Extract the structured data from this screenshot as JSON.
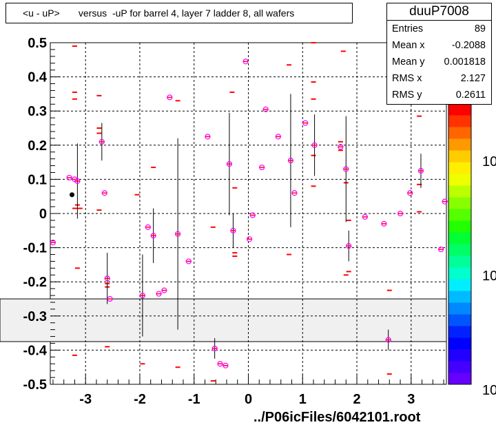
{
  "title": "<u - uP>       versus  -uP for barrel 4, layer 7 ladder 8, all wafers",
  "stats": {
    "name": "duuP7008",
    "rows": [
      {
        "label": "Entries",
        "value": "89"
      },
      {
        "label": "Mean x",
        "value": "-0.2088"
      },
      {
        "label": "Mean y",
        "value": "0.001818"
      },
      {
        "label": "RMS x",
        "value": "2.127"
      },
      {
        "label": "RMS y",
        "value": "0.2611"
      }
    ]
  },
  "footer": "../P06icFiles/6042101.root",
  "colors": {
    "profile_marker": "#ff00ff",
    "dash": "#ff0000",
    "band": "#f0f0f0"
  },
  "chart_data": {
    "type": "scatter",
    "xlim": [
      -3.65,
      3.65
    ],
    "ylim": [
      -0.5,
      0.5
    ],
    "x_ticks": [
      "-3",
      "-2",
      "-1",
      "0",
      "1",
      "2",
      "3"
    ],
    "y_ticks": [
      "-0.5",
      "-0.4",
      "-0.3",
      "-0.2",
      "-0.1",
      "0",
      "0.1",
      "0.2",
      "0.3",
      "0.4",
      "0.5"
    ],
    "grid": true,
    "band": [
      -0.375,
      -0.25
    ],
    "palette_labels": [
      "10",
      "10",
      "10"
    ],
    "profile": [
      {
        "x": -3.6,
        "y": -0.085,
        "e": 0
      },
      {
        "x": -3.3,
        "y": 0.105,
        "e": 0
      },
      {
        "x": -3.2,
        "y": 0.1,
        "e": 0
      },
      {
        "x": -3.15,
        "y": 0.095,
        "e": 0.11
      },
      {
        "x": -2.7,
        "y": 0.21,
        "e": 0.055
      },
      {
        "x": -2.65,
        "y": 0.06,
        "e": 0
      },
      {
        "x": -2.6,
        "y": -0.19,
        "e": 0.075
      },
      {
        "x": -2.55,
        "y": -0.25,
        "e": 0
      },
      {
        "x": -1.95,
        "y": -0.24,
        "e": 0.12
      },
      {
        "x": -1.85,
        "y": -0.04,
        "e": 0
      },
      {
        "x": -1.75,
        "y": -0.065,
        "e": 0.08
      },
      {
        "x": -1.65,
        "y": -0.235,
        "e": 0
      },
      {
        "x": -1.55,
        "y": -0.225,
        "e": 0
      },
      {
        "x": -1.45,
        "y": 0.34,
        "e": 0
      },
      {
        "x": -1.3,
        "y": -0.06,
        "e": 0.28
      },
      {
        "x": -1.1,
        "y": -0.14,
        "e": 0
      },
      {
        "x": -0.75,
        "y": 0.225,
        "e": 0
      },
      {
        "x": -0.62,
        "y": -0.395,
        "e": 0.03
      },
      {
        "x": -0.52,
        "y": -0.44,
        "e": 0
      },
      {
        "x": -0.42,
        "y": -0.445,
        "e": 0
      },
      {
        "x": -0.35,
        "y": 0.145,
        "e": 0.15
      },
      {
        "x": -0.28,
        "y": -0.05,
        "e": 0.05
      },
      {
        "x": -0.05,
        "y": 0.445,
        "e": 0
      },
      {
        "x": 0.02,
        "y": -0.075,
        "e": 0
      },
      {
        "x": 0.08,
        "y": -0.005,
        "e": 0
      },
      {
        "x": 0.25,
        "y": 0.135,
        "e": 0
      },
      {
        "x": 0.32,
        "y": 0.305,
        "e": 0
      },
      {
        "x": 0.55,
        "y": 0.225,
        "e": 0
      },
      {
        "x": 0.78,
        "y": 0.155,
        "e": 0.195
      },
      {
        "x": 0.85,
        "y": 0.06,
        "e": 0
      },
      {
        "x": 1.05,
        "y": 0.265,
        "e": 0
      },
      {
        "x": 1.22,
        "y": 0.2,
        "e": 0.09
      },
      {
        "x": 1.7,
        "y": 0.195,
        "e": 0
      },
      {
        "x": 1.8,
        "y": 0.13,
        "e": 0.155
      },
      {
        "x": 1.85,
        "y": -0.095,
        "e": 0.045
      },
      {
        "x": 2.15,
        "y": -0.01,
        "e": 0
      },
      {
        "x": 2.5,
        "y": -0.03,
        "e": 0
      },
      {
        "x": 2.58,
        "y": -0.37,
        "e": 0.03
      },
      {
        "x": 2.8,
        "y": 0.0,
        "e": 0
      },
      {
        "x": 2.98,
        "y": 0.06,
        "e": 0
      },
      {
        "x": 3.18,
        "y": 0.125,
        "e": 0.05
      },
      {
        "x": 3.55,
        "y": -0.105,
        "e": 0
      },
      {
        "x": 3.62,
        "y": 0.035,
        "e": 0
      }
    ],
    "dashes": [
      [
        -3.2,
        0.49
      ],
      [
        -3.2,
        0.355
      ],
      [
        -3.2,
        0.335
      ],
      [
        -3.15,
        0.025
      ],
      [
        -3.1,
        0.015
      ],
      [
        -3.2,
        0.015
      ],
      [
        -3.15,
        -0.16
      ],
      [
        -3.2,
        -0.415
      ],
      [
        -2.75,
        0.345
      ],
      [
        -2.75,
        0.25
      ],
      [
        -2.75,
        0.235
      ],
      [
        -2.75,
        0.01
      ],
      [
        -2.6,
        -0.205
      ],
      [
        -2.6,
        -0.215
      ],
      [
        -2.6,
        -0.39
      ],
      [
        -2.05,
        0.055
      ],
      [
        -1.95,
        -0.44
      ],
      [
        -1.75,
        0.135
      ],
      [
        -1.3,
        0.33
      ],
      [
        -1.3,
        -0.45
      ],
      [
        -0.65,
        -0.04
      ],
      [
        -0.65,
        -0.49
      ],
      [
        -0.3,
        0.355
      ],
      [
        -0.25,
        0.075
      ],
      [
        -0.25,
        -0.115
      ],
      [
        -0.25,
        -0.125
      ],
      [
        0.75,
        0.435
      ],
      [
        0.75,
        -0.12
      ],
      [
        1.2,
        0.5
      ],
      [
        1.2,
        0.385
      ],
      [
        1.2,
        0.335
      ],
      [
        1.2,
        0.17
      ],
      [
        1.2,
        0.08
      ],
      [
        1.7,
        0.21
      ],
      [
        1.7,
        0.185
      ],
      [
        1.75,
        0.475
      ],
      [
        1.8,
        0.09
      ],
      [
        1.8,
        -0.18
      ],
      [
        1.85,
        -0.02
      ],
      [
        1.85,
        -0.17
      ],
      [
        2.6,
        -0.225
      ],
      [
        2.6,
        -0.47
      ],
      [
        3.15,
        0.285
      ],
      [
        3.15,
        0.085
      ],
      [
        3.15,
        0.005
      ]
    ],
    "points": [
      {
        "x": -3.25,
        "y": 0.055
      }
    ]
  }
}
